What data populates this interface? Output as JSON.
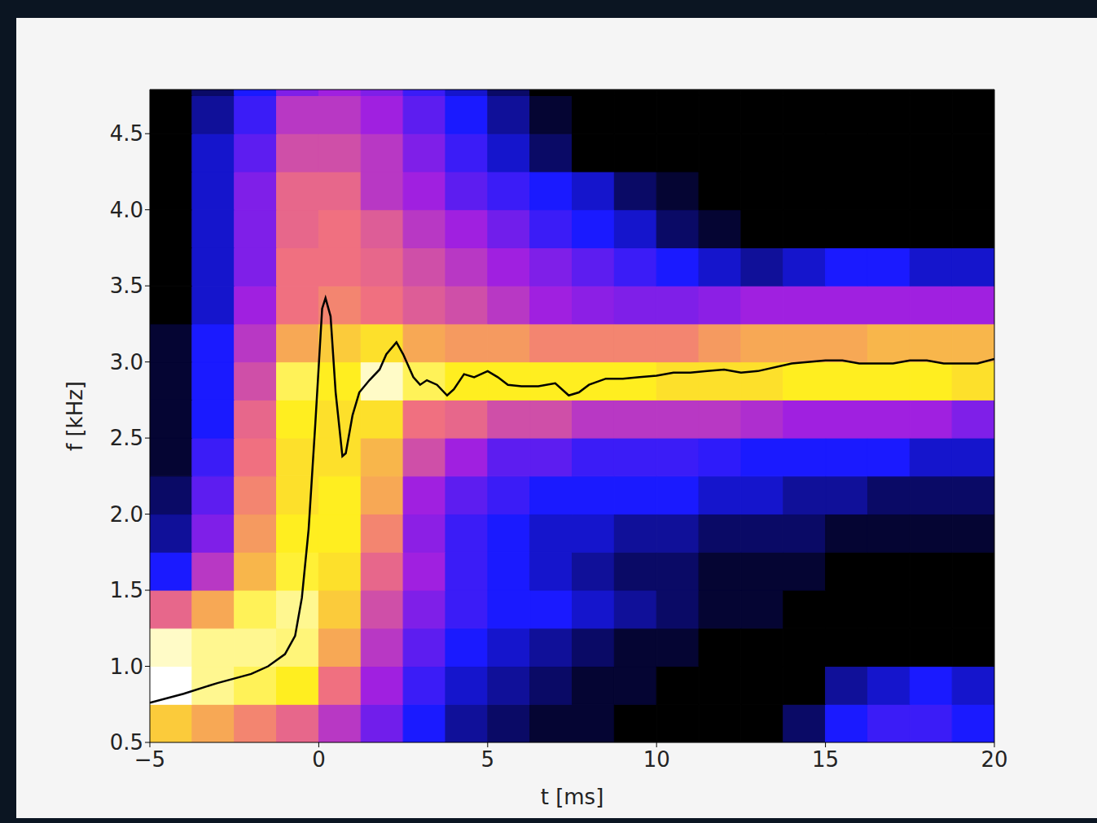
{
  "chart_data": {
    "type": "heatmap",
    "xlabel": "t [ms]",
    "ylabel": "f [kHz]",
    "xlim": [
      -5,
      20
    ],
    "ylim": [
      0.5,
      4.79
    ],
    "xticks": [
      {
        "value": -5,
        "label": "−5"
      },
      0,
      5,
      10,
      15,
      20
    ],
    "yticks": [
      0.5,
      {
        "value": 1,
        "label": "1.0"
      },
      1.5,
      {
        "value": 2,
        "label": "2.0"
      },
      2.5,
      {
        "value": 3,
        "label": "3.0"
      },
      3.5,
      {
        "value": 4,
        "label": "4.0"
      },
      4.5
    ],
    "cells": {
      "zlim": [
        0,
        1
      ],
      "x_edges": [
        -5,
        -3.75,
        -2.5,
        -1.25,
        0,
        1.25,
        2.5,
        3.75,
        5,
        6.25,
        7.5,
        8.75,
        10,
        11.25,
        12.5,
        13.75,
        15,
        16.25,
        17.5,
        18.75,
        20
      ],
      "y_edges": [
        0.5,
        0.75,
        1.0,
        1.25,
        1.5,
        1.75,
        2.0,
        2.25,
        2.5,
        2.75,
        3.0,
        3.25,
        3.5,
        3.75,
        4.0,
        4.25,
        4.5,
        4.75,
        5.0
      ],
      "z": [
        [
          0.75,
          0.7,
          0.65,
          0.6,
          0.5,
          0.38,
          0.25,
          0.15,
          0.1,
          0.05,
          0.05,
          0,
          0,
          0,
          0,
          0.1,
          0.25,
          0.3,
          0.3,
          0.25
        ],
        [
          1.0,
          0.9,
          0.85,
          0.8,
          0.62,
          0.45,
          0.3,
          0.2,
          0.15,
          0.1,
          0.05,
          0.05,
          0,
          0,
          0,
          0,
          0.15,
          0.2,
          0.25,
          0.2
        ],
        [
          0.95,
          0.9,
          0.9,
          0.88,
          0.7,
          0.5,
          0.35,
          0.25,
          0.2,
          0.15,
          0.1,
          0.05,
          0.05,
          0,
          0,
          0,
          0,
          0,
          0,
          0
        ],
        [
          0.6,
          0.7,
          0.85,
          0.9,
          0.75,
          0.55,
          0.4,
          0.3,
          0.25,
          0.25,
          0.2,
          0.15,
          0.1,
          0.05,
          0.05,
          0,
          0,
          0,
          0,
          0
        ],
        [
          0.25,
          0.5,
          0.72,
          0.82,
          0.78,
          0.6,
          0.45,
          0.3,
          0.25,
          0.2,
          0.15,
          0.1,
          0.1,
          0.05,
          0.05,
          0.05,
          0,
          0,
          0,
          0
        ],
        [
          0.15,
          0.4,
          0.68,
          0.8,
          0.8,
          0.65,
          0.42,
          0.3,
          0.25,
          0.2,
          0.2,
          0.15,
          0.15,
          0.1,
          0.1,
          0.1,
          0.05,
          0.05,
          0.05,
          0.05
        ],
        [
          0.1,
          0.35,
          0.65,
          0.78,
          0.8,
          0.7,
          0.45,
          0.35,
          0.3,
          0.25,
          0.25,
          0.25,
          0.25,
          0.2,
          0.2,
          0.15,
          0.15,
          0.1,
          0.1,
          0.1
        ],
        [
          0.05,
          0.3,
          0.62,
          0.78,
          0.78,
          0.72,
          0.55,
          0.45,
          0.35,
          0.35,
          0.3,
          0.3,
          0.3,
          0.28,
          0.25,
          0.25,
          0.25,
          0.25,
          0.2,
          0.2
        ],
        [
          0.05,
          0.25,
          0.6,
          0.8,
          0.78,
          0.78,
          0.62,
          0.6,
          0.55,
          0.55,
          0.5,
          0.5,
          0.5,
          0.5,
          0.48,
          0.45,
          0.45,
          0.45,
          0.45,
          0.4
        ],
        [
          0.05,
          0.25,
          0.55,
          0.85,
          0.8,
          0.95,
          0.85,
          0.8,
          0.8,
          0.8,
          0.8,
          0.8,
          0.78,
          0.78,
          0.78,
          0.8,
          0.8,
          0.8,
          0.8,
          0.78
        ],
        [
          0.05,
          0.25,
          0.5,
          0.7,
          0.75,
          0.78,
          0.7,
          0.68,
          0.68,
          0.65,
          0.65,
          0.65,
          0.65,
          0.68,
          0.7,
          0.7,
          0.7,
          0.72,
          0.72,
          0.72
        ],
        [
          0,
          0.2,
          0.45,
          0.62,
          0.65,
          0.62,
          0.58,
          0.55,
          0.5,
          0.45,
          0.42,
          0.4,
          0.4,
          0.42,
          0.45,
          0.45,
          0.45,
          0.45,
          0.45,
          0.45
        ],
        [
          0,
          0.2,
          0.4,
          0.62,
          0.62,
          0.6,
          0.55,
          0.5,
          0.45,
          0.4,
          0.35,
          0.3,
          0.25,
          0.2,
          0.15,
          0.2,
          0.25,
          0.25,
          0.2,
          0.2
        ],
        [
          0,
          0.2,
          0.4,
          0.6,
          0.62,
          0.58,
          0.5,
          0.45,
          0.38,
          0.3,
          0.25,
          0.2,
          0.1,
          0.05,
          0,
          0,
          0,
          0,
          0,
          0
        ],
        [
          0,
          0.2,
          0.4,
          0.6,
          0.6,
          0.5,
          0.45,
          0.35,
          0.3,
          0.25,
          0.2,
          0.1,
          0.05,
          0,
          0,
          0,
          0,
          0,
          0,
          0
        ],
        [
          0,
          0.2,
          0.35,
          0.55,
          0.55,
          0.5,
          0.4,
          0.3,
          0.2,
          0.1,
          0,
          0,
          0,
          0,
          0,
          0,
          0,
          0,
          0,
          0
        ],
        [
          0,
          0.15,
          0.3,
          0.5,
          0.5,
          0.45,
          0.35,
          0.25,
          0.15,
          0.05,
          0,
          0,
          0,
          0,
          0,
          0,
          0,
          0,
          0,
          0
        ],
        [
          0,
          0.1,
          0.25,
          0.4,
          0.45,
          0.4,
          0.3,
          0.2,
          0.1,
          0,
          0,
          0,
          0,
          0,
          0,
          0,
          0,
          0,
          0,
          0
        ]
      ]
    },
    "line": {
      "type": "line",
      "color": "#000000",
      "x": [
        -5,
        -4,
        -3,
        -2,
        -1.5,
        -1,
        -0.7,
        -0.5,
        -0.3,
        -0.1,
        0.1,
        0.2,
        0.35,
        0.5,
        0.7,
        0.8,
        1.0,
        1.2,
        1.5,
        1.8,
        2.0,
        2.3,
        2.5,
        2.8,
        3.0,
        3.2,
        3.5,
        3.8,
        4.0,
        4.3,
        4.6,
        5.0,
        5.3,
        5.6,
        6,
        6.5,
        7.0,
        7.4,
        7.7,
        8,
        8.5,
        9,
        9.5,
        10,
        10.5,
        11,
        11.5,
        12,
        12.5,
        13,
        14,
        15,
        15.5,
        16,
        17,
        17.5,
        18,
        18.5,
        19,
        19.5,
        20
      ],
      "y": [
        0.76,
        0.82,
        0.89,
        0.95,
        1.0,
        1.08,
        1.2,
        1.45,
        1.9,
        2.6,
        3.35,
        3.42,
        3.3,
        2.8,
        2.38,
        2.4,
        2.65,
        2.8,
        2.88,
        2.95,
        3.05,
        3.13,
        3.05,
        2.9,
        2.85,
        2.88,
        2.85,
        2.78,
        2.82,
        2.92,
        2.9,
        2.94,
        2.9,
        2.85,
        2.84,
        2.84,
        2.86,
        2.78,
        2.8,
        2.85,
        2.89,
        2.89,
        2.9,
        2.91,
        2.93,
        2.93,
        2.94,
        2.95,
        2.93,
        2.94,
        2.99,
        3.01,
        3.01,
        2.99,
        2.99,
        3.01,
        3.01,
        2.99,
        2.99,
        2.99,
        3.02
      ]
    }
  }
}
